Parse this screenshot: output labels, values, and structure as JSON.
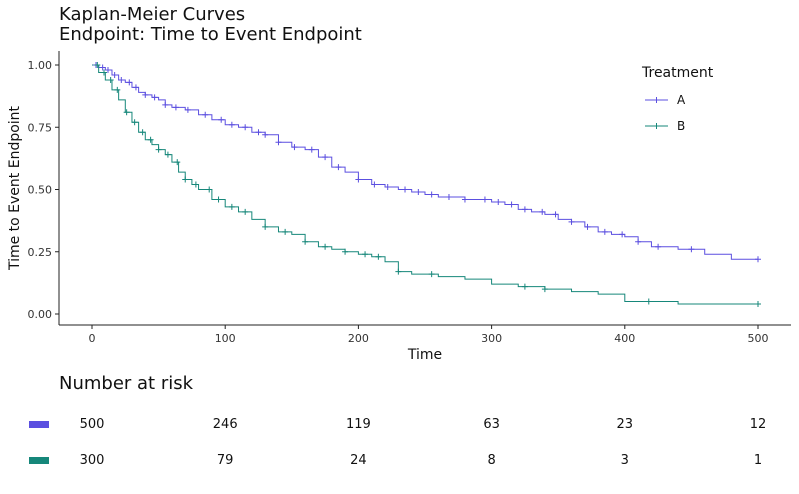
{
  "chart_data": {
    "type": "line",
    "title": "Kaplan-Meier Curves",
    "subtitle": "Endpoint: Time to Event Endpoint",
    "xlabel": "Time",
    "ylabel": "Time to Event Endpoint",
    "xlim": [
      0,
      500
    ],
    "ylim": [
      0,
      1
    ],
    "x_ticks": [
      0,
      100,
      200,
      300,
      400,
      500
    ],
    "x_tick_labels": [
      "0",
      "100",
      "200",
      "300",
      "400",
      "500"
    ],
    "y_ticks": [
      0,
      0.25,
      0.5,
      0.75,
      1
    ],
    "y_tick_labels": [
      "0.00",
      "0.25",
      "0.50",
      "0.75",
      "1.00"
    ],
    "legend": {
      "title": "Treatment",
      "position": "top-right"
    },
    "series": [
      {
        "name": "A",
        "color": "#5b4fe0",
        "x": [
          0,
          5,
          10,
          15,
          20,
          25,
          30,
          35,
          40,
          45,
          50,
          55,
          60,
          70,
          80,
          90,
          100,
          110,
          120,
          130,
          140,
          150,
          160,
          170,
          180,
          190,
          200,
          210,
          220,
          230,
          240,
          250,
          260,
          280,
          300,
          310,
          320,
          330,
          340,
          350,
          360,
          370,
          380,
          390,
          400,
          410,
          420,
          440,
          460,
          480,
          500
        ],
        "y": [
          1.0,
          0.99,
          0.98,
          0.96,
          0.94,
          0.93,
          0.91,
          0.89,
          0.88,
          0.87,
          0.86,
          0.84,
          0.83,
          0.82,
          0.8,
          0.78,
          0.76,
          0.75,
          0.73,
          0.72,
          0.69,
          0.67,
          0.66,
          0.63,
          0.59,
          0.57,
          0.54,
          0.52,
          0.51,
          0.5,
          0.49,
          0.48,
          0.47,
          0.46,
          0.45,
          0.44,
          0.42,
          0.41,
          0.4,
          0.38,
          0.37,
          0.35,
          0.33,
          0.32,
          0.31,
          0.29,
          0.27,
          0.26,
          0.24,
          0.22,
          0.22
        ],
        "censor_x": [
          3,
          8,
          12,
          17,
          22,
          28,
          33,
          40,
          47,
          55,
          63,
          72,
          85,
          97,
          105,
          115,
          125,
          130,
          140,
          152,
          165,
          175,
          185,
          200,
          212,
          222,
          235,
          245,
          255,
          268,
          280,
          295,
          305,
          315,
          325,
          338,
          348,
          360,
          372,
          385,
          398,
          410,
          425,
          450,
          500
        ]
      },
      {
        "name": "B",
        "color": "#16877a",
        "x": [
          0,
          5,
          10,
          15,
          20,
          25,
          30,
          35,
          40,
          45,
          50,
          55,
          60,
          65,
          70,
          75,
          80,
          90,
          100,
          110,
          120,
          130,
          140,
          150,
          160,
          170,
          180,
          190,
          200,
          210,
          220,
          230,
          240,
          260,
          280,
          300,
          320,
          340,
          360,
          380,
          400,
          420,
          440,
          460,
          480,
          500
        ],
        "y": [
          1.0,
          0.97,
          0.94,
          0.9,
          0.86,
          0.81,
          0.77,
          0.73,
          0.7,
          0.68,
          0.66,
          0.64,
          0.61,
          0.57,
          0.54,
          0.52,
          0.5,
          0.46,
          0.43,
          0.41,
          0.38,
          0.35,
          0.33,
          0.32,
          0.29,
          0.27,
          0.26,
          0.25,
          0.24,
          0.23,
          0.21,
          0.17,
          0.16,
          0.15,
          0.14,
          0.12,
          0.11,
          0.1,
          0.09,
          0.08,
          0.05,
          0.05,
          0.04,
          0.04,
          0.04,
          0.04
        ],
        "censor_x": [
          4,
          9,
          14,
          19,
          26,
          32,
          38,
          44,
          50,
          57,
          64,
          70,
          78,
          88,
          95,
          105,
          115,
          130,
          145,
          160,
          175,
          190,
          205,
          215,
          230,
          255,
          325,
          340,
          418,
          500
        ]
      }
    ],
    "risk_table": {
      "title": "Number at risk",
      "times": [
        0,
        100,
        200,
        300,
        400,
        500
      ],
      "rows": [
        {
          "name": "A",
          "color": "#5b4fe0",
          "values": [
            "500",
            "246",
            "119",
            "63",
            "23",
            "12"
          ]
        },
        {
          "name": "B",
          "color": "#16877a",
          "values": [
            "300",
            "79",
            "24",
            "8",
            "3",
            "1"
          ]
        }
      ]
    }
  }
}
